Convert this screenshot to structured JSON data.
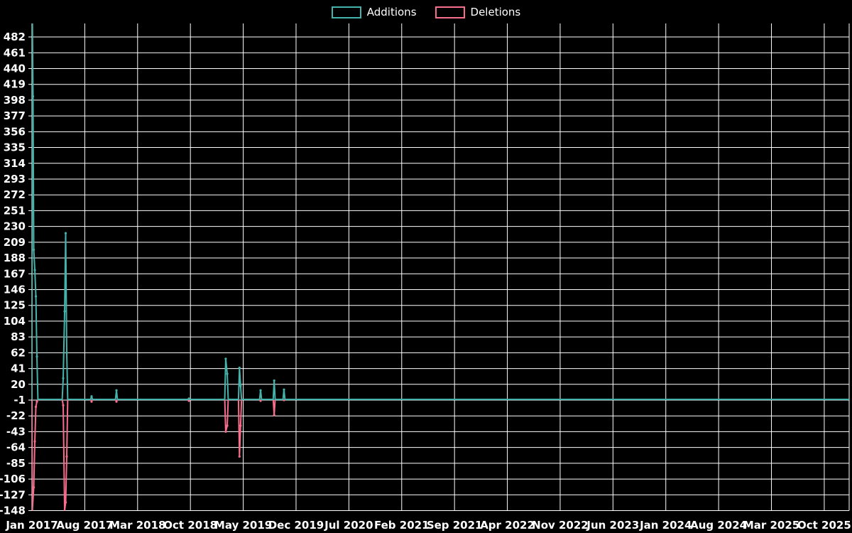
{
  "legend": {
    "additions_label": "Additions",
    "deletions_label": "Deletions"
  },
  "colors": {
    "additions": "#45b3ab",
    "deletions": "#f76d8c",
    "grid": "#ffffff",
    "text": "#ffffff",
    "background": "#000000"
  },
  "chart_data": {
    "type": "line",
    "title": "",
    "legend_entries": [
      "Additions",
      "Deletions"
    ],
    "legend_position": "top-center",
    "grid": true,
    "x_axis": {
      "unit": "months since Jan 2017",
      "tick_labels": [
        "Jan 2017",
        "Aug 2017",
        "Mar 2018",
        "Oct 2018",
        "May 2019",
        "Dec 2019",
        "Jul 2020",
        "Feb 2021",
        "Sep 2021",
        "Apr 2022",
        "Nov 2022",
        "Jun 2023",
        "Jan 2024",
        "Aug 2024",
        "Mar 2025",
        "Oct 2025"
      ],
      "tick_months": [
        0,
        7,
        14,
        21,
        28,
        35,
        42,
        49,
        56,
        63,
        70,
        77,
        84,
        91,
        98,
        105
      ],
      "range_months": [
        0,
        108.3
      ]
    },
    "y_axis": {
      "tick_values": [
        482,
        461,
        440,
        419,
        398,
        377,
        356,
        335,
        314,
        293,
        272,
        251,
        230,
        209,
        188,
        167,
        146,
        125,
        104,
        83,
        62,
        41,
        20,
        -1,
        -22,
        -43,
        -64,
        -85,
        -106,
        -127,
        -148
      ],
      "range": [
        -148,
        500
      ]
    },
    "baseline_value": 0,
    "series": [
      {
        "name": "Additions",
        "color_key": "additions",
        "points": [
          [
            0.05,
            510
          ],
          [
            0.14,
            403
          ],
          [
            0.24,
            199
          ],
          [
            0.38,
            172
          ],
          [
            0.52,
            137
          ],
          [
            0.66,
            57
          ],
          [
            4.14,
            28
          ],
          [
            4.33,
            117
          ],
          [
            4.47,
            221
          ],
          [
            4.61,
            62
          ],
          [
            7.9,
            4
          ],
          [
            11.2,
            12
          ],
          [
            20.8,
            1
          ],
          [
            25.68,
            54
          ],
          [
            25.88,
            34
          ],
          [
            27.5,
            42
          ],
          [
            27.65,
            18
          ],
          [
            30.3,
            12
          ],
          [
            32.1,
            25
          ],
          [
            33.4,
            13
          ]
        ]
      },
      {
        "name": "Deletions",
        "color_key": "deletions",
        "points": [
          [
            0.05,
            -148
          ],
          [
            0.24,
            -117
          ],
          [
            0.38,
            -56
          ],
          [
            0.52,
            -10
          ],
          [
            0.66,
            -3
          ],
          [
            4.14,
            -8
          ],
          [
            4.33,
            -148
          ],
          [
            4.47,
            -137
          ],
          [
            4.61,
            -76
          ],
          [
            7.9,
            -3
          ],
          [
            11.2,
            -3
          ],
          [
            20.8,
            -2
          ],
          [
            25.68,
            -43
          ],
          [
            25.88,
            -35
          ],
          [
            27.5,
            -76
          ],
          [
            27.65,
            -35
          ],
          [
            30.3,
            -2
          ],
          [
            32.1,
            -21
          ],
          [
            33.4,
            -1
          ]
        ]
      }
    ]
  }
}
